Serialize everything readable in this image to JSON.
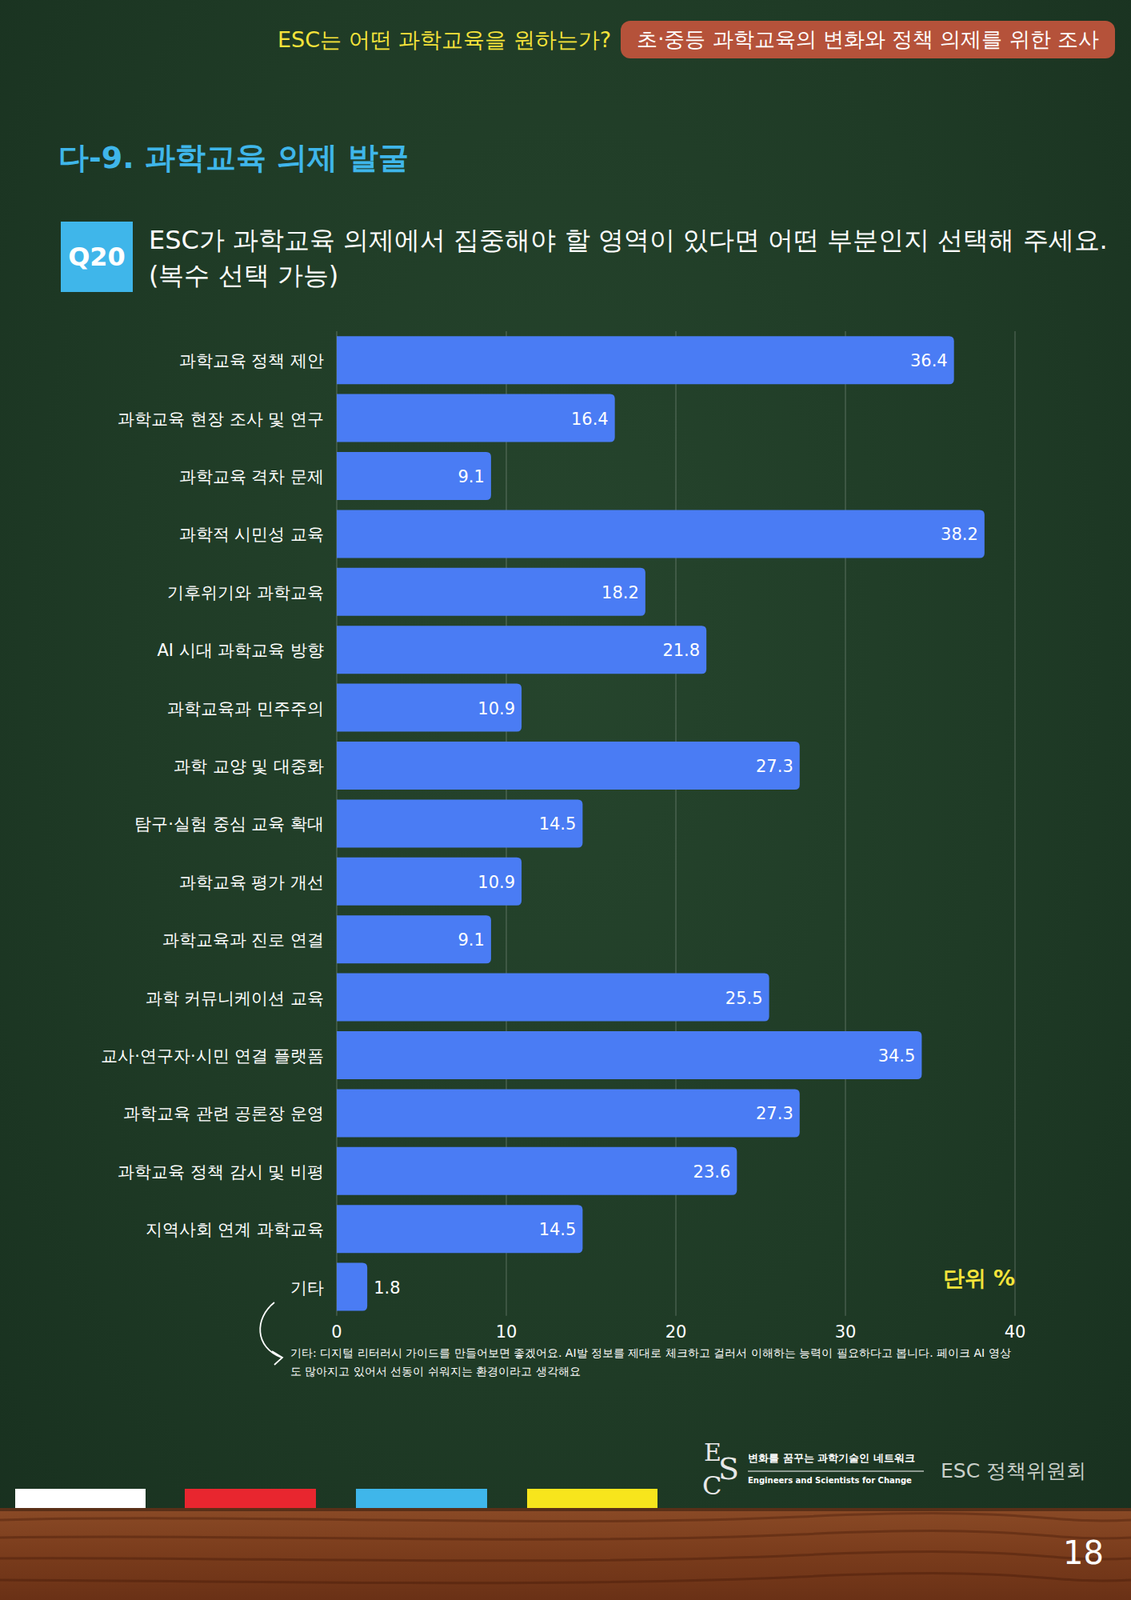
{
  "header": {
    "title": "ESC는 어떤 과학교육을 원하는가?",
    "badge": "초·중등 과학교육의 변화와 정책 의제를 위한 조사"
  },
  "section_title": "다-9. 과학교육 의제 발굴",
  "question": {
    "number": "Q20",
    "text": "ESC가 과학교육 의제에서 집중해야 할 영역이 있다면 어떤 부분인지 선택해 주세요.",
    "note": "(복수 선택 가능)"
  },
  "chart_data": {
    "type": "bar",
    "orientation": "horizontal",
    "categories": [
      "과학교육 정책 제안",
      "과학교육 현장 조사 및 연구",
      "과학교육 격차 문제",
      "과학적 시민성 교육",
      "기후위기와 과학교육",
      "AI 시대 과학교육 방향",
      "과학교육과 민주주의",
      "과학 교양 및 대중화",
      "탐구·실험 중심 교육 확대",
      "과학교육 평가 개선",
      "과학교육과 진로 연결",
      "과학 커뮤니케이션 교육",
      "교사·연구자·시민 연결 플랫폼",
      "과학교육 관련 공론장 운영",
      "과학교육 정책 감시 및 비평",
      "지역사회 연계 과학교육",
      "기타"
    ],
    "values": [
      36.4,
      16.4,
      9.1,
      38.2,
      18.2,
      21.8,
      10.9,
      27.3,
      14.5,
      10.9,
      9.1,
      25.5,
      34.5,
      27.3,
      23.6,
      14.5,
      1.8
    ],
    "color": "#4a7cf4",
    "xlim": [
      0,
      40
    ],
    "xticks": [
      0,
      10,
      20,
      30,
      40
    ],
    "grid": true,
    "data_labels": true,
    "annotations": [
      "단위 %",
      "기타: 디지털 리터러시 가이드를 만들어보면 좋겠어요. AI발 정보를 제대로 체크하고 걸러서 이해하는 능력이 필요하다고 봅니다. 페이크 AI 영상도 많아지고 있어서 선동이 쉬워지는 환경이라고 생각해요"
    ]
  },
  "footer": {
    "logo": [
      "E",
      "S",
      "C"
    ],
    "tagline": "변화를 꿈꾸는 과학기술인 네트워크",
    "tagline_en": "Engineers and Scientists for Change",
    "organization": "ESC 정책위원회",
    "page": 18
  }
}
